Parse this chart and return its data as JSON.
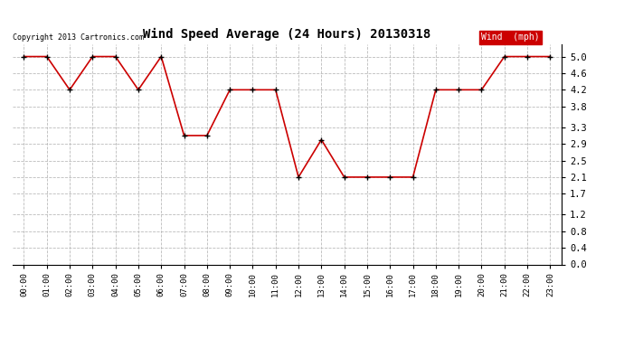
{
  "title": "Wind Speed Average (24 Hours) 20130318",
  "copyright_text": "Copyright 2013 Cartronics.com",
  "legend_label": "Wind  (mph)",
  "hours": [
    0,
    1,
    2,
    3,
    4,
    5,
    6,
    7,
    8,
    9,
    10,
    11,
    12,
    13,
    14,
    15,
    16,
    17,
    18,
    19,
    20,
    21,
    22,
    23
  ],
  "x_labels": [
    "00:00",
    "01:00",
    "02:00",
    "03:00",
    "04:00",
    "05:00",
    "06:00",
    "07:00",
    "08:00",
    "09:00",
    "10:00",
    "11:00",
    "12:00",
    "13:00",
    "14:00",
    "15:00",
    "16:00",
    "17:00",
    "18:00",
    "19:00",
    "20:00",
    "21:00",
    "22:00",
    "23:00"
  ],
  "wind_values": [
    5.0,
    5.0,
    4.2,
    5.0,
    5.0,
    4.2,
    5.0,
    3.1,
    3.1,
    4.2,
    4.2,
    4.2,
    2.1,
    3.0,
    2.1,
    2.1,
    2.1,
    2.1,
    4.2,
    4.2,
    4.2,
    5.0,
    5.0,
    5.0
  ],
  "line_color": "#cc0000",
  "marker_color": "#000000",
  "background_color": "#ffffff",
  "grid_color": "#bbbbbb",
  "ylim": [
    0.0,
    5.3
  ],
  "yticks": [
    0.0,
    0.4,
    0.8,
    1.2,
    1.7,
    2.1,
    2.5,
    2.9,
    3.3,
    3.8,
    4.2,
    4.6,
    5.0
  ],
  "legend_bg": "#cc0000",
  "legend_text_color": "#ffffff",
  "fig_width": 6.9,
  "fig_height": 3.75,
  "dpi": 100
}
